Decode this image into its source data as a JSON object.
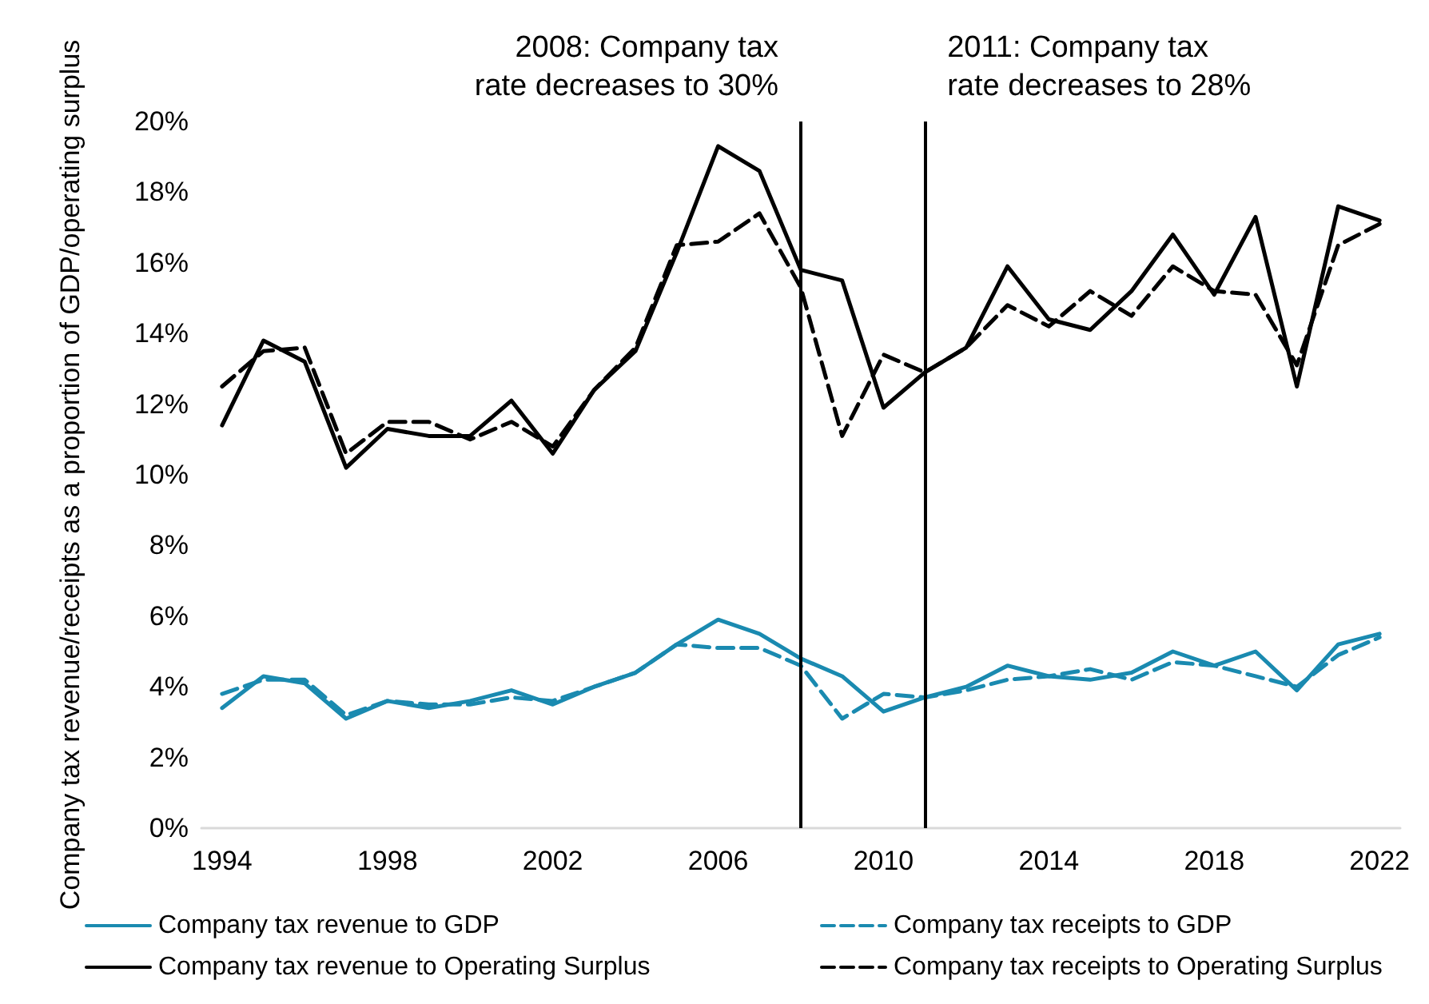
{
  "chart_data": {
    "type": "line",
    "ylabel": "Company tax revenue/receipts as a proportion of GDP/operating surplus",
    "x": [
      1994,
      1995,
      1996,
      1997,
      1998,
      1999,
      2000,
      2001,
      2002,
      2003,
      2004,
      2005,
      2006,
      2007,
      2008,
      2009,
      2010,
      2011,
      2012,
      2013,
      2014,
      2015,
      2016,
      2017,
      2018,
      2019,
      2020,
      2021,
      2022
    ],
    "xlim": [
      1993.5,
      2022.5
    ],
    "xticks": [
      1994,
      1998,
      2002,
      2006,
      2010,
      2014,
      2018,
      2022
    ],
    "ylim": [
      0,
      20
    ],
    "yticks": [
      {
        "value": 0,
        "label": "0%"
      },
      {
        "value": 2,
        "label": "2%"
      },
      {
        "value": 4,
        "label": "4%"
      },
      {
        "value": 6,
        "label": "6%"
      },
      {
        "value": 8,
        "label": "8%"
      },
      {
        "value": 10,
        "label": "10%"
      },
      {
        "value": 12,
        "label": "12%"
      },
      {
        "value": 14,
        "label": "14%"
      },
      {
        "value": 16,
        "label": "16%"
      },
      {
        "value": 18,
        "label": "18%"
      },
      {
        "value": 20,
        "label": "20%"
      }
    ],
    "series": [
      {
        "name": "Company tax revenue to GDP",
        "color": "#1a8ab0",
        "line_style": "solid",
        "values": [
          3.4,
          4.3,
          4.1,
          3.1,
          3.6,
          3.4,
          3.6,
          3.9,
          3.5,
          4.0,
          4.4,
          5.2,
          5.9,
          5.5,
          4.8,
          4.3,
          3.3,
          3.7,
          4.0,
          4.6,
          4.3,
          4.2,
          4.4,
          5.0,
          4.6,
          5.0,
          3.9,
          5.2,
          5.5
        ]
      },
      {
        "name": "Company tax receipts to GDP",
        "color": "#1a8ab0",
        "line_style": "dashed",
        "values": [
          3.8,
          4.2,
          4.2,
          3.2,
          3.6,
          3.5,
          3.5,
          3.7,
          3.6,
          4.0,
          4.4,
          5.2,
          5.1,
          5.1,
          4.6,
          3.1,
          3.8,
          3.7,
          3.9,
          4.2,
          4.3,
          4.5,
          4.2,
          4.7,
          4.6,
          4.3,
          4.0,
          4.9,
          5.4
        ]
      },
      {
        "name": "Company tax revenue to Operating Surplus",
        "color": "#000000",
        "line_style": "solid",
        "values": [
          11.4,
          13.8,
          13.2,
          10.2,
          11.3,
          11.1,
          11.1,
          12.1,
          10.6,
          12.4,
          13.5,
          16.3,
          19.3,
          18.6,
          15.8,
          15.5,
          11.9,
          12.9,
          13.6,
          15.9,
          14.4,
          14.1,
          15.2,
          16.8,
          15.1,
          17.3,
          12.5,
          17.6,
          17.2
        ]
      },
      {
        "name": "Company tax receipts to Operating Surplus",
        "color": "#000000",
        "line_style": "dashed",
        "values": [
          12.5,
          13.5,
          13.6,
          10.6,
          11.5,
          11.5,
          11.0,
          11.5,
          10.8,
          12.4,
          13.6,
          16.5,
          16.6,
          17.4,
          15.3,
          11.1,
          13.4,
          12.9,
          13.6,
          14.8,
          14.2,
          15.2,
          14.5,
          15.9,
          15.2,
          15.1,
          13.1,
          16.5,
          17.1
        ]
      }
    ],
    "ref_lines": [
      {
        "axis": "x",
        "value": 2008,
        "label": "2008: Company tax\nrate decreases to 30%",
        "color": "#000000"
      },
      {
        "axis": "x",
        "value": 2011,
        "label": "2011: Company tax\nrate decreases to 28%",
        "color": "#000000"
      }
    ],
    "grid": false,
    "legend": "bottom",
    "marker": "none"
  }
}
